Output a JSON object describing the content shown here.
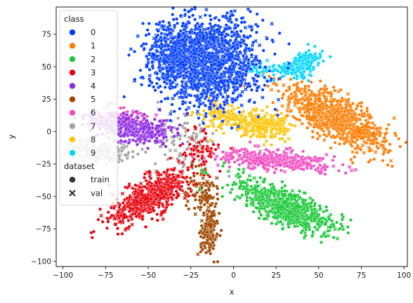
{
  "chart_data": {
    "type": "scatter",
    "xlabel": "x",
    "ylabel": "y",
    "xlim": [
      -104,
      102
    ],
    "ylim": [
      -104,
      96
    ],
    "xticks": [
      -100,
      -75,
      -50,
      -25,
      0,
      25,
      50,
      75,
      100
    ],
    "yticks": [
      -100,
      -75,
      -50,
      -25,
      0,
      25,
      50,
      75
    ],
    "grid": false,
    "legend_position": "top-left",
    "legend": {
      "hue_title": "class",
      "style_title": "dataset",
      "style_items": [
        {
          "label": "train",
          "marker": "circle"
        },
        {
          "label": "val",
          "marker": "x"
        }
      ]
    },
    "series": [
      {
        "name": "0",
        "color": "#023eff",
        "clusters": [
          {
            "cx": -15,
            "cy": 55,
            "sx": 15,
            "sy": 18,
            "n": 1500,
            "rot": 0
          },
          {
            "cx": -35,
            "cy": 60,
            "sx": 8,
            "sy": 12,
            "n": 300,
            "rot": 0
          }
        ]
      },
      {
        "name": "1",
        "color": "#ff7c00",
        "clusters": [
          {
            "cx": 60,
            "cy": 10,
            "sx": 18,
            "sy": 7,
            "n": 900,
            "rot": -38
          }
        ]
      },
      {
        "name": "2",
        "color": "#1ac938",
        "clusters": [
          {
            "cx": 30,
            "cy": -58,
            "sx": 16,
            "sy": 6,
            "n": 750,
            "rot": -32
          }
        ]
      },
      {
        "name": "3",
        "color": "#e8000b",
        "clusters": [
          {
            "cx": -48,
            "cy": -50,
            "sx": 15,
            "sy": 6,
            "n": 650,
            "rot": 40
          },
          {
            "cx": -20,
            "cy": -15,
            "sx": 6,
            "sy": 8,
            "n": 60,
            "rot": 0
          }
        ]
      },
      {
        "name": "4",
        "color": "#8b2be2",
        "clusters": [
          {
            "cx": -58,
            "cy": 2,
            "sx": 13,
            "sy": 5,
            "n": 380,
            "rot": -10
          }
        ]
      },
      {
        "name": "5",
        "color": "#9f4800",
        "clusters": [
          {
            "cx": -14,
            "cy": -75,
            "sx": 3,
            "sy": 10,
            "n": 160,
            "rot": 0
          },
          {
            "cx": -18,
            "cy": -45,
            "sx": 4,
            "sy": 10,
            "n": 100,
            "rot": 0
          }
        ]
      },
      {
        "name": "6",
        "color": "#f14cc1",
        "clusters": [
          {
            "cx": 25,
            "cy": -22,
            "sx": 17,
            "sy": 3.5,
            "n": 420,
            "rot": -6
          },
          {
            "cx": -68,
            "cy": 10,
            "sx": 8,
            "sy": 4,
            "n": 120,
            "rot": 0
          }
        ]
      },
      {
        "name": "7",
        "color": "#a3a3a3",
        "clusters": [
          {
            "cx": -78,
            "cy": -16,
            "sx": 10,
            "sy": 4,
            "n": 160,
            "rot": 0
          },
          {
            "cx": -30,
            "cy": -5,
            "sx": 8,
            "sy": 12,
            "n": 90,
            "rot": 0
          }
        ]
      },
      {
        "name": "8",
        "color": "#ffc400",
        "clusters": [
          {
            "cx": 15,
            "cy": 5,
            "sx": 9,
            "sy": 5,
            "n": 300,
            "rot": -12
          },
          {
            "cx": -10,
            "cy": 12,
            "sx": 5,
            "sy": 6,
            "n": 100,
            "rot": 0
          }
        ]
      },
      {
        "name": "9",
        "color": "#00d7ff",
        "clusters": [
          {
            "cx": 40,
            "cy": 52,
            "sx": 7,
            "sy": 4,
            "n": 200,
            "rot": 35
          },
          {
            "cx": 20,
            "cy": 48,
            "sx": 8,
            "sy": 3,
            "n": 50,
            "rot": 0
          }
        ]
      }
    ]
  }
}
